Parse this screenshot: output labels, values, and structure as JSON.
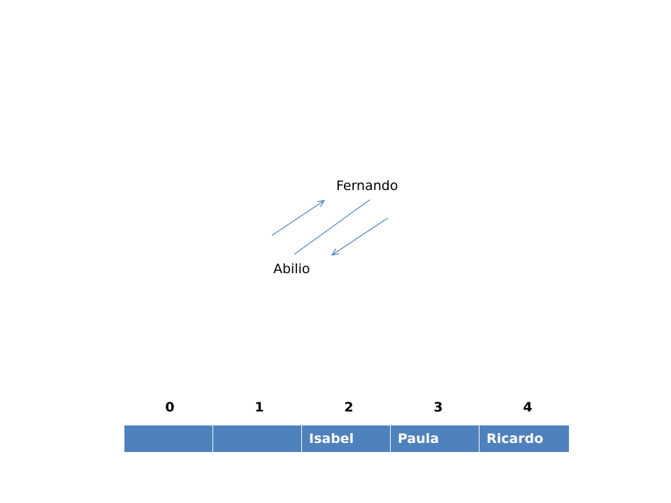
{
  "nodes": {
    "top": "Fernando",
    "bottom": "Abilio"
  },
  "indices": [
    "0",
    "1",
    "2",
    "3",
    "4"
  ],
  "cells": [
    "",
    "",
    "Isabel",
    "Paula",
    "Ricardo"
  ],
  "colors": {
    "arrow": "#4f81bd",
    "cell_fill": "#4f81bd",
    "cell_text": "#ffffff"
  }
}
